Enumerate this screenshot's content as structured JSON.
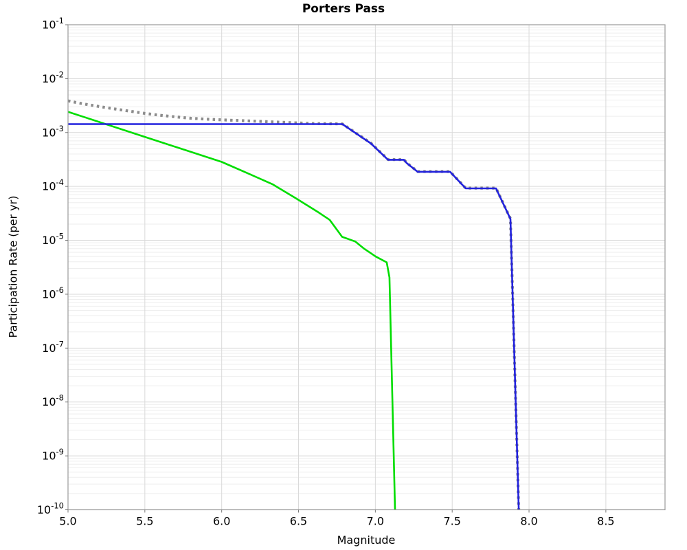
{
  "chart_data": {
    "type": "line",
    "title": "Porters Pass",
    "xlabel": "Magnitude",
    "ylabel": "Participation Rate (per yr)",
    "x_range": [
      5.0,
      8.885
    ],
    "y_exp_range": [
      -10,
      -1
    ],
    "x_ticks": [
      {
        "v": 5.0,
        "label": "5.0"
      },
      {
        "v": 5.5,
        "label": "5.5"
      },
      {
        "v": 6.0,
        "label": "6.0"
      },
      {
        "v": 6.5,
        "label": "6.5"
      },
      {
        "v": 7.0,
        "label": "7.0"
      },
      {
        "v": 7.5,
        "label": "7.5"
      },
      {
        "v": 8.0,
        "label": "8.0"
      },
      {
        "v": 8.5,
        "label": "8.5"
      }
    ],
    "y_ticks": [
      {
        "exp": "-1"
      },
      {
        "exp": "-2"
      },
      {
        "exp": "-3"
      },
      {
        "exp": "-4"
      },
      {
        "exp": "-5"
      },
      {
        "exp": "-6"
      },
      {
        "exp": "-7"
      },
      {
        "exp": "-8"
      },
      {
        "exp": "-9"
      },
      {
        "exp": "-10"
      }
    ],
    "grid": "major + log minor horizontal",
    "legend": "none",
    "series": [
      {
        "name": "total-rate-dotted",
        "color": "#8c8c8c",
        "style": "dotted",
        "width": 4.2,
        "points": [
          [
            5.0,
            0.00387
          ],
          [
            5.1,
            0.0034
          ],
          [
            5.2,
            0.00305
          ],
          [
            5.3,
            0.00275
          ],
          [
            5.4,
            0.00249
          ],
          [
            5.5,
            0.00227
          ],
          [
            5.6,
            0.00209
          ],
          [
            5.7,
            0.00195
          ],
          [
            5.8,
            0.00184
          ],
          [
            5.9,
            0.00177
          ],
          [
            6.0,
            0.00172
          ],
          [
            6.2,
            0.00163
          ],
          [
            6.4,
            0.00155
          ],
          [
            6.6,
            0.00147
          ],
          [
            6.785,
            0.001445
          ],
          [
            6.97,
            0.00064
          ],
          [
            7.083,
            0.000315
          ],
          [
            7.186,
            0.000315
          ],
          [
            7.205,
            0.000273
          ],
          [
            7.275,
            0.000189
          ],
          [
            7.486,
            0.000189
          ],
          [
            7.588,
            9.3e-05
          ],
          [
            7.785,
            9.3e-05
          ],
          [
            7.879,
            2.53e-05
          ],
          [
            7.933,
            1e-10
          ]
        ]
      },
      {
        "name": "gr-curve-green",
        "color": "#00dd00",
        "style": "solid",
        "width": 2.6,
        "points": [
          [
            5.0,
            0.00243
          ],
          [
            5.5,
            0.00083
          ],
          [
            6.0,
            0.000285
          ],
          [
            6.18,
            0.00017
          ],
          [
            6.33,
            0.00011
          ],
          [
            6.48,
            6.1e-05
          ],
          [
            6.63,
            3.3e-05
          ],
          [
            6.703,
            2.4e-05
          ],
          [
            6.784,
            1.16e-05
          ],
          [
            6.869,
            9.5e-06
          ],
          [
            6.927,
            7e-06
          ],
          [
            7.003,
            5e-06
          ],
          [
            7.074,
            3.9e-06
          ],
          [
            7.092,
            2.05e-06
          ],
          [
            7.128,
            1e-10
          ]
        ]
      },
      {
        "name": "characteristic-curve-blue",
        "color": "#2222dd",
        "style": "solid",
        "width": 2.6,
        "points": [
          [
            5.0,
            0.001435
          ],
          [
            6.785,
            0.001435
          ],
          [
            6.97,
            0.00063
          ],
          [
            7.083,
            0.000312
          ],
          [
            7.186,
            0.000312
          ],
          [
            7.205,
            0.00027
          ],
          [
            7.275,
            0.000187
          ],
          [
            7.486,
            0.000187
          ],
          [
            7.588,
            9.2e-05
          ],
          [
            7.785,
            9.2e-05
          ],
          [
            7.879,
            2.5e-05
          ],
          [
            7.933,
            1e-10
          ]
        ]
      }
    ]
  }
}
